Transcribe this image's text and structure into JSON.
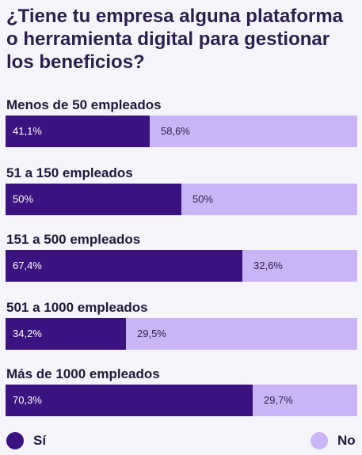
{
  "chart_data": {
    "type": "bar",
    "orientation": "horizontal",
    "stacked": true,
    "title": "¿Tiene tu empresa alguna plataforma o herramienta digital para gestionar los beneficios?",
    "categories": [
      "Menos de 50 empleados",
      "51 a 150 empleados",
      "151 a 500 empleados",
      "501 a 1000 empleados",
      "Más de 1000 empleados"
    ],
    "series": [
      {
        "name": "Sí",
        "color": "#3a1380",
        "values": [
          41.1,
          50,
          67.4,
          34.2,
          70.3
        ],
        "labels": [
          "41,1%",
          "50%",
          "67,4%",
          "34,2%",
          "70,3%"
        ]
      },
      {
        "name": "No",
        "color": "#c9b4f5",
        "values": [
          58.6,
          50,
          32.6,
          29.5,
          29.7
        ],
        "labels": [
          "58,6%",
          "50%",
          "32,6%",
          "29,5%",
          "29,7%"
        ]
      }
    ],
    "legend": "bottom"
  }
}
